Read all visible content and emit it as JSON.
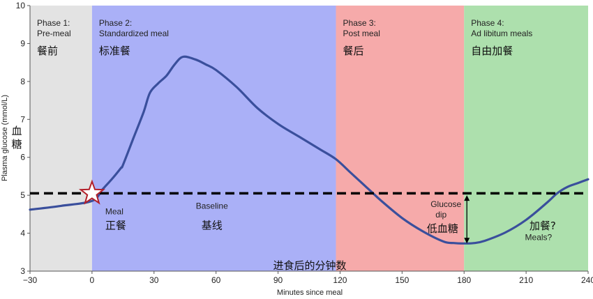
{
  "chart_data": {
    "type": "line",
    "xlabel": "Minutes since meal",
    "xlabel_zh": "进食后的分钟数",
    "ylabel": "Plasma glucose (mmol/L)",
    "ylabel_zh": [
      "血",
      "糖"
    ],
    "xlim": [
      -30,
      240
    ],
    "ylim": [
      3,
      10
    ],
    "x_ticks": [
      -30,
      0,
      30,
      60,
      90,
      120,
      150,
      180,
      210,
      240
    ],
    "y_ticks": [
      3,
      4,
      5,
      6,
      7,
      8,
      9,
      10
    ],
    "x_tick_labels": [
      "−30",
      "0",
      "30",
      "60",
      "90",
      "120",
      "150",
      "180",
      "210",
      "240"
    ],
    "y_tick_labels": [
      "3",
      "4",
      "5",
      "6",
      "7",
      "8",
      "9",
      "10"
    ],
    "grid": false,
    "baseline": {
      "y": 5.05,
      "label": "Baseline",
      "label_zh": "基线"
    },
    "phases": [
      {
        "x0": -30,
        "x1": 0,
        "color": "#e3e3e3",
        "lines": [
          "Phase 1:",
          "Pre-meal"
        ],
        "zh": "餐前"
      },
      {
        "x0": 0,
        "x1": 118,
        "color": "#aab0f7",
        "lines": [
          "Phase 2:",
          "Standardized meal"
        ],
        "zh": "标准餐"
      },
      {
        "x0": 118,
        "x1": 180,
        "color": "#f6aaaa",
        "lines": [
          "Phase 3:",
          "Post meal"
        ],
        "zh": "餐后"
      },
      {
        "x0": 180,
        "x1": 240,
        "color": "#ade0ad",
        "lines": [
          "Phase 4:",
          "Ad libitum meals"
        ],
        "zh": "自由加餐"
      }
    ],
    "series": [
      {
        "color": "#3a4f9c",
        "x": [
          -30,
          -15,
          0,
          5,
          10,
          14,
          15,
          20,
          25,
          28,
          32,
          36,
          40,
          44,
          50,
          55,
          60,
          70,
          80,
          90,
          100,
          110,
          118,
          125,
          130,
          135,
          140,
          150,
          160,
          170,
          175,
          180,
          185,
          190,
          200,
          210,
          220,
          225,
          230,
          235,
          240
        ],
        "y": [
          4.62,
          4.72,
          4.85,
          5.15,
          5.45,
          5.72,
          5.8,
          6.5,
          7.2,
          7.7,
          7.95,
          8.15,
          8.45,
          8.65,
          8.58,
          8.45,
          8.3,
          7.85,
          7.3,
          6.88,
          6.55,
          6.22,
          5.95,
          5.6,
          5.35,
          5.1,
          4.85,
          4.4,
          4.05,
          3.78,
          3.74,
          3.73,
          3.74,
          3.8,
          4.02,
          4.35,
          4.8,
          5.05,
          5.22,
          5.32,
          5.42
        ]
      }
    ],
    "annotations": {
      "meal_marker": {
        "x": 0,
        "y": 5.05,
        "label": "Meal",
        "label_zh": "正餐"
      },
      "glucose_dip": {
        "x": 180,
        "y_top": 5.0,
        "y_bottom": 3.73,
        "label": [
          "Glucose",
          "dip"
        ],
        "label_zh": "低血糖"
      },
      "meals_question": {
        "label_zh": "加餐?",
        "label": "Meals?"
      }
    }
  }
}
